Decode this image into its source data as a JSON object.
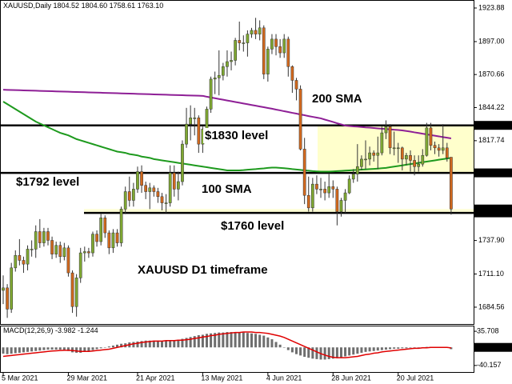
{
  "chart_data": [
    {
      "type": "candlestick",
      "title": "XAUUSD,Daily",
      "header": {
        "values": [
          1804.52,
          1804.6,
          1758.61,
          1763.1
        ],
        "value_labels": [
          "1804.52",
          "1804.60",
          "1758.61",
          "1763.10"
        ]
      },
      "categories": [
        "5 Mar 2021",
        null,
        null,
        null,
        null,
        null,
        null,
        null,
        null,
        null,
        null,
        null,
        null,
        null,
        null,
        null,
        "29 Mar 2021",
        null,
        null,
        null,
        null,
        null,
        null,
        null,
        null,
        null,
        null,
        null,
        null,
        null,
        null,
        null,
        null,
        "21 Apr 2021",
        null,
        null,
        null,
        null,
        null,
        null,
        null,
        null,
        null,
        null,
        null,
        null,
        null,
        null,
        null,
        "13 May 2021",
        null,
        null,
        null,
        null,
        null,
        null,
        null,
        null,
        null,
        null,
        null,
        null,
        null,
        null,
        null,
        "4 Jun 2021",
        null,
        null,
        null,
        null,
        null,
        null,
        null,
        null,
        null,
        null,
        null,
        null,
        null,
        null,
        null,
        "28 Jun 2021",
        null,
        null,
        null,
        null,
        null,
        null,
        null,
        null,
        null,
        null,
        null,
        null,
        null,
        null,
        null,
        "20 Jul 2021",
        null,
        null,
        null,
        null,
        null,
        null,
        null,
        null,
        null,
        null,
        null,
        null,
        null
      ],
      "ohlc": {
        "up_color": "#7fa832",
        "down_color": "#d2691e",
        "open": [
          1698,
          1700,
          1683,
          1716,
          1726,
          1722,
          1719,
          1731,
          1731,
          1745,
          1736,
          1745,
          1738,
          1727,
          1734,
          1725,
          1732,
          1712,
          1685,
          1708,
          1728,
          1729,
          1728,
          1743,
          1737,
          1756,
          1744,
          1732,
          1744,
          1736,
          1763,
          1777,
          1770,
          1779,
          1793,
          1782,
          1777,
          1780,
          1777,
          1773,
          1768,
          1768,
          1792,
          1779,
          1785,
          1815,
          1831,
          1836,
          1836,
          1815,
          1827,
          1843,
          1867,
          1868,
          1870,
          1877,
          1881,
          1882,
          1898,
          1896,
          1896,
          1903,
          1906,
          1903,
          1908,
          1871,
          1891,
          1899,
          1893,
          1888,
          1899,
          1877,
          1866,
          1859,
          1811,
          1774,
          1764,
          1783,
          1779,
          1779,
          1776,
          1781,
          1779,
          1761,
          1770,
          1776,
          1787,
          1791,
          1797,
          1803,
          1803,
          1808,
          1806,
          1808,
          1824,
          1829,
          1812,
          1812,
          1812,
          1803,
          1806,
          1802,
          1797,
          1799,
          1806,
          1828,
          1814,
          1812,
          1810,
          1812,
          1804.52
        ],
        "high": [
          1710,
          1703,
          1720,
          1730,
          1739,
          1725,
          1734,
          1738,
          1750,
          1755,
          1748,
          1748,
          1741,
          1737,
          1737,
          1736,
          1734,
          1714,
          1711,
          1732,
          1733,
          1732,
          1745,
          1746,
          1759,
          1758,
          1746,
          1747,
          1747,
          1765,
          1781,
          1789,
          1784,
          1797,
          1798,
          1785,
          1784,
          1782,
          1780,
          1776,
          1775,
          1798,
          1798,
          1793,
          1818,
          1844,
          1846,
          1844,
          1838,
          1829,
          1845,
          1869,
          1873,
          1890,
          1880,
          1890,
          1889,
          1900,
          1913,
          1902,
          1906,
          1908,
          1916,
          1914,
          1910,
          1893,
          1903,
          1903,
          1899,
          1903,
          1901,
          1878,
          1868,
          1862,
          1820,
          1789,
          1788,
          1790,
          1788,
          1785,
          1791,
          1786,
          1781,
          1772,
          1779,
          1790,
          1795,
          1815,
          1806,
          1818,
          1813,
          1810,
          1821,
          1829,
          1834,
          1831,
          1825,
          1816,
          1813,
          1808,
          1810,
          1806,
          1806,
          1811,
          1832,
          1832,
          1817,
          1815,
          1831,
          1816,
          1804.6
        ],
        "low": [
          1687,
          1676,
          1680,
          1713,
          1718,
          1712,
          1714,
          1725,
          1724,
          1732,
          1733,
          1734,
          1723,
          1724,
          1720,
          1722,
          1709,
          1680,
          1677,
          1704,
          1721,
          1724,
          1725,
          1733,
          1734,
          1740,
          1727,
          1728,
          1733,
          1733,
          1759,
          1765,
          1765,
          1776,
          1776,
          1771,
          1763,
          1773,
          1768,
          1762,
          1760,
          1765,
          1773,
          1770,
          1782,
          1812,
          1818,
          1822,
          1808,
          1808,
          1824,
          1840,
          1855,
          1854,
          1866,
          1869,
          1874,
          1878,
          1890,
          1889,
          1885,
          1900,
          1899,
          1898,
          1867,
          1865,
          1887,
          1886,
          1884,
          1884,
          1869,
          1856,
          1850,
          1810,
          1767,
          1761,
          1761,
          1775,
          1772,
          1770,
          1772,
          1772,
          1750,
          1757,
          1760,
          1775,
          1784,
          1785,
          1794,
          1795,
          1798,
          1801,
          1795,
          1806,
          1819,
          1807,
          1806,
          1800,
          1794,
          1798,
          1793,
          1790,
          1793,
          1797,
          1805,
          1810,
          1807,
          1805,
          1807,
          1801,
          1758.61
        ],
        "close": [
          1700,
          1683,
          1716,
          1726,
          1722,
          1719,
          1731,
          1731,
          1745,
          1736,
          1745,
          1738,
          1727,
          1734,
          1725,
          1732,
          1712,
          1685,
          1708,
          1728,
          1729,
          1728,
          1743,
          1737,
          1756,
          1744,
          1732,
          1744,
          1736,
          1763,
          1777,
          1770,
          1779,
          1793,
          1782,
          1777,
          1780,
          1777,
          1773,
          1768,
          1768,
          1792,
          1779,
          1785,
          1815,
          1831,
          1836,
          1836,
          1815,
          1827,
          1843,
          1867,
          1868,
          1870,
          1877,
          1881,
          1882,
          1898,
          1896,
          1896,
          1903,
          1906,
          1903,
          1908,
          1871,
          1891,
          1899,
          1893,
          1888,
          1899,
          1877,
          1866,
          1859,
          1811,
          1774,
          1764,
          1783,
          1779,
          1779,
          1776,
          1781,
          1779,
          1761,
          1770,
          1776,
          1787,
          1791,
          1797,
          1803,
          1803,
          1808,
          1806,
          1808,
          1824,
          1829,
          1812,
          1812,
          1812,
          1803,
          1806,
          1802,
          1797,
          1799,
          1806,
          1828,
          1814,
          1812,
          1810,
          1812,
          1804,
          1763.1
        ]
      },
      "lines": [
        {
          "name": "200 SMA",
          "color": "#8e1f96",
          "values": [
            1858.5,
            1858.4,
            1858.3,
            1858.2,
            1858.1,
            1858,
            1857.9,
            1857.8,
            1857.7,
            1857.6,
            1857.5,
            1857.4,
            1857.3,
            1857.2,
            1857.1,
            1857,
            1856.9,
            1856.8,
            1856.7,
            1856.6,
            1856.5,
            1856.4,
            1856.3,
            1856.2,
            1856.1,
            1856,
            1855.9,
            1855.8,
            1855.7,
            1855.6,
            1855.5,
            1855.4,
            1855.3,
            1855.2,
            1855.1,
            1855,
            1854.9,
            1854.8,
            1854.7,
            1854.6,
            1854.5,
            1854.4,
            1854.3,
            1854.2,
            1854.1,
            1854,
            1853.9,
            1853.8,
            1853.7,
            1853.6,
            1852.9,
            1852.3,
            1851.7,
            1851.1,
            1850.5,
            1849.9,
            1849.3,
            1848.7,
            1848.1,
            1847.5,
            1846.9,
            1846.3,
            1845.7,
            1845.1,
            1844.5,
            1843.9,
            1843.3,
            1842.6,
            1842,
            1841.3,
            1840.7,
            1840,
            1839.4,
            1838.7,
            1838.1,
            1837.4,
            1836.8,
            1836.2,
            1835.6,
            1834.6,
            1833.7,
            1832.7,
            1831.7,
            1830.8,
            1829.8,
            1829.5,
            1829.2,
            1829,
            1828.7,
            1828.4,
            1828.2,
            1827.9,
            1827.6,
            1827.3,
            1827.1,
            1826.8,
            1826.5,
            1826.3,
            1826,
            1825.5,
            1825,
            1824.4,
            1823.9,
            1823.3,
            1822.8,
            1822.2,
            1821.7,
            1821.2,
            1820.6,
            1820.1,
            1819.6
          ]
        },
        {
          "name": "100 SMA",
          "color": "#1e9a1e",
          "values": [
            1849,
            1847,
            1845,
            1843,
            1841,
            1839,
            1837,
            1835,
            1833,
            1831.5,
            1830,
            1828.5,
            1827,
            1825.5,
            1824,
            1823,
            1822,
            1820.5,
            1819,
            1818,
            1817,
            1816,
            1815,
            1814,
            1813,
            1812,
            1811,
            1810,
            1809,
            1808.5,
            1808,
            1807,
            1806.5,
            1806,
            1805,
            1804.5,
            1804,
            1803,
            1802.5,
            1802,
            1801.5,
            1801,
            1800.5,
            1800,
            1799.5,
            1799,
            1798.5,
            1798,
            1797.5,
            1797,
            1796.5,
            1796,
            1795.5,
            1795,
            1794.5,
            1794,
            1794,
            1794,
            1794,
            1794.2,
            1794.5,
            1794.8,
            1795,
            1795.3,
            1795.6,
            1796,
            1796.2,
            1796.2,
            1796,
            1795.7,
            1795.4,
            1795,
            1794.7,
            1794.4,
            1794,
            1793.7,
            1793.4,
            1793.2,
            1793,
            1793,
            1793,
            1793.2,
            1793.4,
            1793.6,
            1793.8,
            1794,
            1794.2,
            1794.4,
            1794.6,
            1794.8,
            1795,
            1795.2,
            1795.4,
            1795.7,
            1796,
            1796.5,
            1797,
            1797.5,
            1798,
            1798.5,
            1799,
            1799.5,
            1800,
            1800.5,
            1801,
            1801.5,
            1802,
            1802.5,
            1803,
            1803.5,
            1804
          ]
        }
      ],
      "levels": [
        {
          "value": 1830,
          "label": "$1830 level"
        },
        {
          "value": 1792,
          "label": "$1792 level"
        },
        {
          "value": 1760,
          "label": "$1760 level"
        }
      ],
      "price_labels": [
        {
          "value": 1830,
          "label": "1830.00"
        },
        {
          "value": 1792,
          "label": "1792.00"
        },
        {
          "value": 1763.1,
          "label": "1763.10"
        },
        {
          "value": 1760,
          "label": "1760.00"
        }
      ],
      "annotation": "XAUUSD D1 timeframe",
      "ylim": [
        1671.1,
        1930.28
      ],
      "yticks": [
        {
          "value": 1923.88,
          "label": "1923.88"
        },
        {
          "value": 1897,
          "label": "1897.00"
        },
        {
          "value": 1870.66,
          "label": "1870.66"
        },
        {
          "value": 1844.22,
          "label": "1844.22"
        },
        {
          "value": 1817.74,
          "label": "1817.74"
        },
        {
          "value": 1737.9,
          "label": "1737.90"
        },
        {
          "value": 1711.1,
          "label": "1711.10"
        },
        {
          "value": 1684.56,
          "label": "1684.56"
        }
      ]
    },
    {
      "type": "macd",
      "title": "MACD(12,26,9)",
      "series": [
        {
          "type": "bar",
          "color": "#6e6e6e",
          "values": [
            -14,
            -15,
            -14,
            -13,
            -12,
            -11,
            -10,
            -9,
            -8,
            -7,
            -6,
            -5,
            -5,
            -5,
            -5,
            -6,
            -8,
            -11,
            -12,
            -12,
            -10,
            -8,
            -6,
            -4,
            -2,
            0,
            2,
            4,
            6,
            8,
            9,
            11,
            12,
            13,
            14,
            15,
            15,
            15,
            15,
            14,
            14,
            15,
            16,
            17,
            19,
            21,
            23,
            25,
            27,
            28,
            30,
            31,
            32,
            33,
            33,
            34,
            34,
            34,
            34,
            33,
            32,
            31,
            30,
            28,
            26,
            22,
            18,
            12,
            6,
            0,
            -6,
            -11,
            -15,
            -18,
            -21,
            -23,
            -25,
            -26,
            -27,
            -27,
            -26,
            -25,
            -24,
            -22,
            -20,
            -18,
            -16,
            -14,
            -12,
            -10,
            -9,
            -8,
            -7,
            -6,
            -5,
            -4,
            -3,
            -3,
            -2,
            -2,
            -1,
            -1,
            0,
            0,
            1,
            1,
            1,
            1,
            0,
            -1,
            -3.982
          ]
        },
        {
          "type": "line",
          "color": "#e00000",
          "values": [
            -20,
            -19,
            -18,
            -17,
            -16,
            -15,
            -14,
            -13,
            -12,
            -11,
            -10,
            -9,
            -8,
            -7.5,
            -7,
            -6.5,
            -6.5,
            -7,
            -8,
            -9,
            -9,
            -9,
            -8,
            -7,
            -6,
            -5,
            -4,
            -2,
            0,
            2,
            4,
            6,
            8,
            9,
            11,
            12,
            13,
            14,
            14,
            14,
            15,
            15,
            15,
            16,
            16,
            17,
            18,
            20,
            21,
            23,
            24,
            26,
            27,
            29,
            30,
            31,
            32,
            33,
            33,
            34,
            34,
            34,
            33,
            33,
            32,
            31,
            29,
            27,
            25,
            22,
            18,
            14,
            10,
            6,
            2,
            -2,
            -6,
            -10,
            -14,
            -17,
            -20,
            -22,
            -23,
            -23,
            -23,
            -22,
            -21,
            -20,
            -18,
            -16,
            -15,
            -13,
            -12,
            -10,
            -9,
            -8,
            -7,
            -6,
            -5,
            -4,
            -3,
            -2,
            -2,
            -1,
            -1,
            0,
            0,
            0,
            0,
            0,
            -1.244
          ]
        }
      ],
      "ylim": [
        -56.4,
        48.3
      ],
      "yticks": [
        35.708,
        {
          "value": 0,
          "label": "0.00"
        },
        -40.157
      ]
    }
  ]
}
